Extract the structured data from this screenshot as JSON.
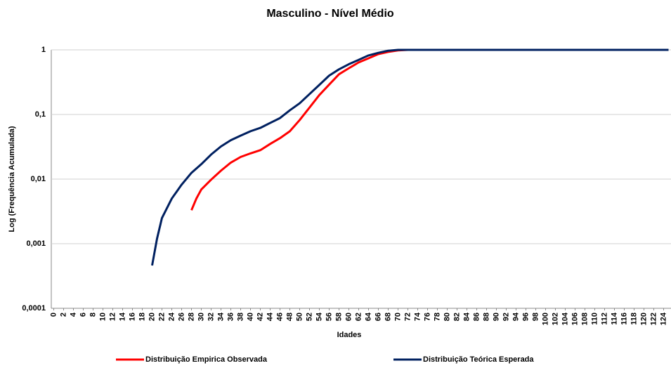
{
  "chart_data": {
    "type": "line",
    "title": "Masculino - Nível Médio",
    "xlabel": "Idades",
    "ylabel": "Log (Frequência Acumulada)",
    "log_y": true,
    "grid": true,
    "legend": "bottom",
    "xlim": [
      -0.5,
      125.5
    ],
    "xticks": [
      0,
      2,
      4,
      6,
      8,
      10,
      12,
      14,
      16,
      18,
      20,
      22,
      24,
      26,
      28,
      30,
      32,
      34,
      36,
      38,
      40,
      42,
      44,
      46,
      48,
      50,
      52,
      54,
      56,
      58,
      60,
      62,
      64,
      66,
      68,
      70,
      72,
      74,
      76,
      78,
      80,
      82,
      84,
      86,
      88,
      90,
      92,
      94,
      96,
      98,
      100,
      102,
      104,
      106,
      108,
      110,
      112,
      114,
      116,
      118,
      120,
      122,
      124
    ],
    "ylim": [
      0.0001,
      1
    ],
    "yticks": [
      {
        "value": 0.0001,
        "label": "0,0001"
      },
      {
        "value": 0.001,
        "label": "0,001"
      },
      {
        "value": 0.01,
        "label": "0,01"
      },
      {
        "value": 0.1,
        "label": "0,1"
      },
      1
    ],
    "series": [
      {
        "name": "Distribuição Empirica Observada",
        "color": "#ff0000",
        "x": [
          28,
          29,
          30,
          32,
          34,
          36,
          38,
          40,
          42,
          44,
          46,
          48,
          50,
          52,
          54,
          56,
          58,
          60,
          62,
          64,
          66,
          68,
          70,
          72,
          78
        ],
        "values": [
          0.0033,
          0.005,
          0.0069,
          0.0098,
          0.0135,
          0.018,
          0.022,
          0.025,
          0.028,
          0.035,
          0.043,
          0.055,
          0.082,
          0.128,
          0.2,
          0.29,
          0.42,
          0.52,
          0.64,
          0.74,
          0.86,
          0.93,
          0.98,
          1,
          1
        ]
      },
      {
        "name": "Distribuição Teórica Esperada",
        "color": "#002060",
        "x": [
          20,
          21,
          22,
          24,
          26,
          28,
          30,
          32,
          34,
          36,
          38,
          40,
          42,
          44,
          46,
          48,
          50,
          52,
          54,
          56,
          58,
          60,
          62,
          64,
          66,
          68,
          70,
          80,
          90,
          100,
          110,
          125
        ],
        "values": [
          0.00046,
          0.0012,
          0.0025,
          0.005,
          0.0082,
          0.0125,
          0.017,
          0.024,
          0.032,
          0.04,
          0.047,
          0.055,
          0.062,
          0.074,
          0.088,
          0.116,
          0.149,
          0.207,
          0.287,
          0.4,
          0.5,
          0.6,
          0.7,
          0.82,
          0.9,
          0.97,
          1,
          1,
          1,
          1,
          1,
          1
        ]
      }
    ]
  }
}
